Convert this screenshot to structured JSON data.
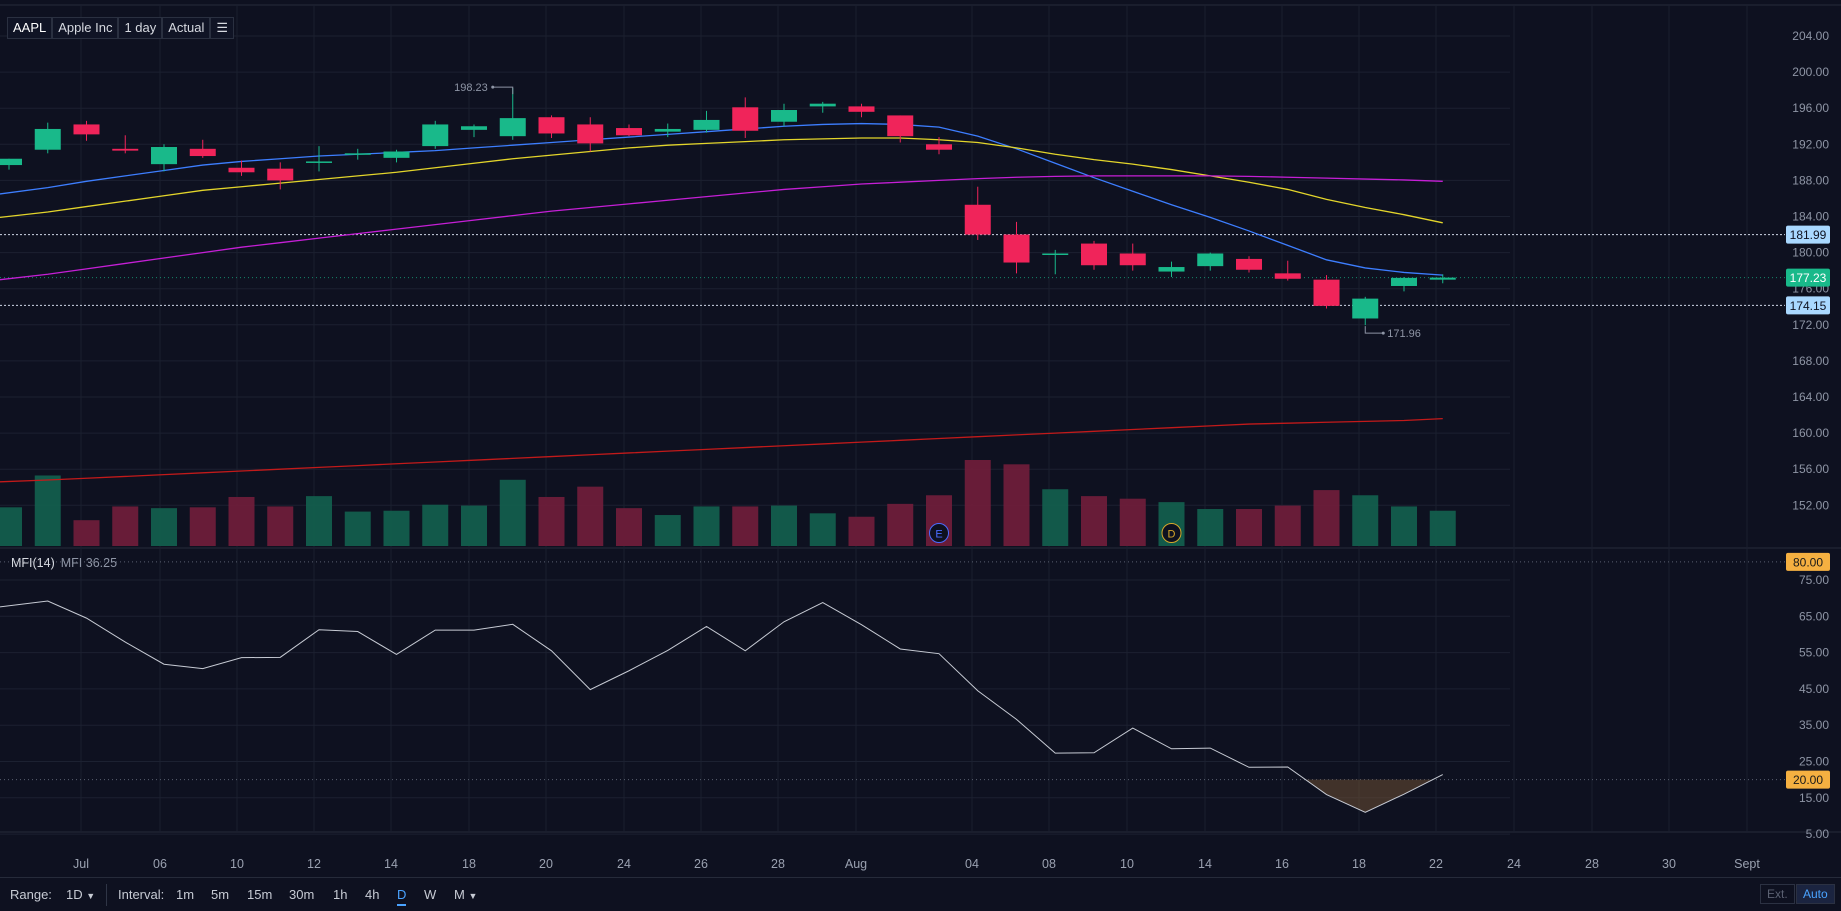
{
  "header": {
    "symbol": "AAPL",
    "name": "Apple Inc",
    "interval": "1 day",
    "mode": "Actual",
    "menu_icon": "list-icon"
  },
  "chart_data": {
    "type": "candlestick",
    "price_axis": {
      "ticks": [
        "204.00",
        "200.00",
        "196.00",
        "192.00",
        "188.00",
        "184.00",
        "180.00",
        "176.00",
        "172.00",
        "168.00",
        "164.00",
        "160.00",
        "156.00",
        "152.00"
      ],
      "min": 148,
      "max": 206
    },
    "x_labels": [
      "Jul",
      "06",
      "10",
      "12",
      "14",
      "18",
      "20",
      "24",
      "26",
      "28",
      "Aug",
      "04",
      "08",
      "10",
      "14",
      "16",
      "18",
      "22",
      "24",
      "28",
      "30",
      "Sept"
    ],
    "candles": [
      {
        "o": 189.7,
        "h": 190.4,
        "l": 189.2,
        "c": 190.4
      },
      {
        "o": 191.4,
        "h": 194.4,
        "l": 191.0,
        "c": 193.7
      },
      {
        "o": 194.2,
        "h": 194.6,
        "l": 192.4,
        "c": 193.1
      },
      {
        "o": 191.5,
        "h": 193.0,
        "l": 191.0,
        "c": 191.3
      },
      {
        "o": 189.8,
        "h": 192.0,
        "l": 189.0,
        "c": 191.7
      },
      {
        "o": 191.5,
        "h": 192.5,
        "l": 190.5,
        "c": 190.7
      },
      {
        "o": 189.4,
        "h": 190.2,
        "l": 188.5,
        "c": 188.9
      },
      {
        "o": 189.3,
        "h": 190.0,
        "l": 187.0,
        "c": 188.0
      },
      {
        "o": 190.0,
        "h": 191.8,
        "l": 189.0,
        "c": 190.1
      },
      {
        "o": 190.9,
        "h": 191.5,
        "l": 190.3,
        "c": 191.0
      },
      {
        "o": 190.5,
        "h": 191.4,
        "l": 190.0,
        "c": 191.2
      },
      {
        "o": 191.8,
        "h": 194.6,
        "l": 191.5,
        "c": 194.2
      },
      {
        "o": 193.6,
        "h": 194.2,
        "l": 192.8,
        "c": 194.0
      },
      {
        "o": 192.9,
        "h": 198.23,
        "l": 192.5,
        "c": 194.9
      },
      {
        "o": 195.0,
        "h": 195.2,
        "l": 192.7,
        "c": 193.2
      },
      {
        "o": 194.2,
        "h": 195.0,
        "l": 191.2,
        "c": 192.1
      },
      {
        "o": 193.8,
        "h": 194.2,
        "l": 192.9,
        "c": 193.0
      },
      {
        "o": 193.4,
        "h": 194.3,
        "l": 192.8,
        "c": 193.7
      },
      {
        "o": 193.6,
        "h": 195.7,
        "l": 193.3,
        "c": 194.7
      },
      {
        "o": 196.1,
        "h": 197.2,
        "l": 192.7,
        "c": 193.5
      },
      {
        "o": 194.5,
        "h": 196.5,
        "l": 194.0,
        "c": 195.8
      },
      {
        "o": 196.2,
        "h": 196.7,
        "l": 195.5,
        "c": 196.5
      },
      {
        "o": 196.2,
        "h": 196.5,
        "l": 195.0,
        "c": 195.6
      },
      {
        "o": 195.2,
        "h": 195.2,
        "l": 192.2,
        "c": 192.9
      },
      {
        "o": 192.0,
        "h": 192.8,
        "l": 190.9,
        "c": 191.4
      },
      {
        "o": 185.3,
        "h": 187.3,
        "l": 181.4,
        "c": 182.0
      },
      {
        "o": 182.0,
        "h": 183.4,
        "l": 177.7,
        "c": 178.9
      },
      {
        "o": 179.8,
        "h": 180.3,
        "l": 177.6,
        "c": 179.9
      },
      {
        "o": 181.0,
        "h": 181.3,
        "l": 178.1,
        "c": 178.6
      },
      {
        "o": 179.9,
        "h": 181.0,
        "l": 178.0,
        "c": 178.6
      },
      {
        "o": 177.9,
        "h": 179.0,
        "l": 177.3,
        "c": 178.4
      },
      {
        "o": 178.5,
        "h": 180.0,
        "l": 178.0,
        "c": 179.9
      },
      {
        "o": 179.3,
        "h": 179.6,
        "l": 177.8,
        "c": 178.1
      },
      {
        "o": 177.7,
        "h": 179.1,
        "l": 176.9,
        "c": 177.1
      },
      {
        "o": 177.0,
        "h": 177.5,
        "l": 173.8,
        "c": 174.1
      },
      {
        "o": 172.7,
        "h": 175.1,
        "l": 171.96,
        "c": 174.9
      },
      {
        "o": 176.3,
        "h": 177.3,
        "l": 175.7,
        "c": 177.2
      },
      {
        "o": 177.0,
        "h": 177.6,
        "l": 176.6,
        "c": 177.23
      }
    ],
    "volume": [
      {
        "v": 0.45,
        "up": true
      },
      {
        "v": 0.82,
        "up": true
      },
      {
        "v": 0.3,
        "up": false
      },
      {
        "v": 0.46,
        "up": false
      },
      {
        "v": 0.44,
        "up": true
      },
      {
        "v": 0.45,
        "up": false
      },
      {
        "v": 0.57,
        "up": false
      },
      {
        "v": 0.46,
        "up": false
      },
      {
        "v": 0.58,
        "up": true
      },
      {
        "v": 0.4,
        "up": true
      },
      {
        "v": 0.41,
        "up": true
      },
      {
        "v": 0.48,
        "up": true
      },
      {
        "v": 0.47,
        "up": true
      },
      {
        "v": 0.77,
        "up": true
      },
      {
        "v": 0.57,
        "up": false
      },
      {
        "v": 0.69,
        "up": false
      },
      {
        "v": 0.44,
        "up": false
      },
      {
        "v": 0.36,
        "up": true
      },
      {
        "v": 0.46,
        "up": true
      },
      {
        "v": 0.46,
        "up": false
      },
      {
        "v": 0.47,
        "up": true
      },
      {
        "v": 0.38,
        "up": true
      },
      {
        "v": 0.34,
        "up": false
      },
      {
        "v": 0.49,
        "up": false
      },
      {
        "v": 0.59,
        "up": false
      },
      {
        "v": 1.0,
        "up": false
      },
      {
        "v": 0.95,
        "up": false
      },
      {
        "v": 0.66,
        "up": true
      },
      {
        "v": 0.58,
        "up": false
      },
      {
        "v": 0.55,
        "up": false
      },
      {
        "v": 0.51,
        "up": true
      },
      {
        "v": 0.43,
        "up": true
      },
      {
        "v": 0.43,
        "up": false
      },
      {
        "v": 0.47,
        "up": false
      },
      {
        "v": 0.65,
        "up": false
      },
      {
        "v": 0.59,
        "up": true
      },
      {
        "v": 0.46,
        "up": true
      },
      {
        "v": 0.41,
        "up": true
      }
    ],
    "moving_averages": [
      {
        "color": "#3d7eff",
        "values": [
          186.5,
          187.2,
          187.9,
          188.5,
          189.1,
          189.7,
          190.1,
          190.4,
          190.7,
          190.9,
          191.1,
          191.3,
          191.6,
          191.9,
          192.2,
          192.5,
          192.8,
          193.1,
          193.4,
          193.7,
          194.0,
          194.2,
          194.3,
          194.2,
          193.9,
          192.9,
          191.5,
          189.9,
          188.3,
          186.8,
          185.3,
          183.9,
          182.4,
          180.8,
          179.2,
          178.3,
          177.8,
          177.5
        ]
      },
      {
        "color": "#e3d52b",
        "values": [
          183.9,
          184.5,
          185.1,
          185.7,
          186.3,
          186.9,
          187.3,
          187.7,
          188.1,
          188.5,
          188.9,
          189.4,
          189.9,
          190.4,
          190.8,
          191.2,
          191.6,
          191.9,
          192.1,
          192.3,
          192.5,
          192.6,
          192.7,
          192.7,
          192.5,
          192.2,
          191.6,
          190.9,
          190.3,
          189.8,
          189.2,
          188.5,
          187.8,
          187.0,
          185.9,
          185.0,
          184.2,
          183.3
        ]
      },
      {
        "color": "#c51fd6",
        "values": [
          177.0,
          177.6,
          178.2,
          178.8,
          179.4,
          180.0,
          180.6,
          181.1,
          181.6,
          182.1,
          182.6,
          183.1,
          183.6,
          184.1,
          184.6,
          185.0,
          185.4,
          185.8,
          186.2,
          186.6,
          187.0,
          187.3,
          187.6,
          187.8,
          188.0,
          188.2,
          188.35,
          188.45,
          188.5,
          188.5,
          188.5,
          188.5,
          188.45,
          188.35,
          188.25,
          188.15,
          188.05,
          187.9
        ]
      },
      {
        "color": "#c21a1a",
        "values": [
          154.6,
          154.8,
          155.0,
          155.2,
          155.4,
          155.6,
          155.8,
          156.0,
          156.2,
          156.4,
          156.6,
          156.8,
          157.0,
          157.2,
          157.4,
          157.6,
          157.8,
          158.0,
          158.2,
          158.4,
          158.6,
          158.8,
          159.0,
          159.2,
          159.4,
          159.6,
          159.8,
          160.0,
          160.2,
          160.4,
          160.6,
          160.8,
          161.0,
          161.1,
          161.2,
          161.3,
          161.4,
          161.6
        ]
      }
    ],
    "annotations": {
      "high_label": "198.23",
      "low_label": "171.96",
      "level_upper": "181.99",
      "level_current": "177.23",
      "level_lower": "174.15",
      "event_markers": [
        "E",
        "D"
      ]
    },
    "mfi": {
      "title": "MFI(14)",
      "value_label": "MFI 36.25",
      "axis_ticks": [
        "75.00",
        "65.00",
        "55.00",
        "45.00",
        "35.00",
        "25.00",
        "15.00",
        "5.00"
      ],
      "overbought": "80.00",
      "oversold": "20.00",
      "values": [
        67.6,
        69.2,
        64.5,
        57.9,
        51.8,
        50.6,
        53.6,
        53.7,
        61.3,
        60.8,
        54.5,
        61.2,
        61.2,
        62.8,
        55.5,
        44.8,
        50.0,
        55.6,
        62.2,
        55.5,
        63.5,
        68.8,
        62.7,
        56.0,
        54.7,
        44.5,
        36.6,
        27.3,
        27.4,
        34.2,
        28.5,
        28.7,
        23.4,
        23.5,
        15.9,
        11.0,
        16.0,
        21.4
      ]
    }
  },
  "footer": {
    "range_label": "Range:",
    "range_value": "1D",
    "interval_label": "Interval:",
    "intervals": [
      "1m",
      "5m",
      "15m",
      "30m",
      "1h",
      "4h",
      "D",
      "W",
      "M"
    ],
    "active_interval": "D",
    "ext_label": "Ext.",
    "auto_label": "Auto"
  }
}
